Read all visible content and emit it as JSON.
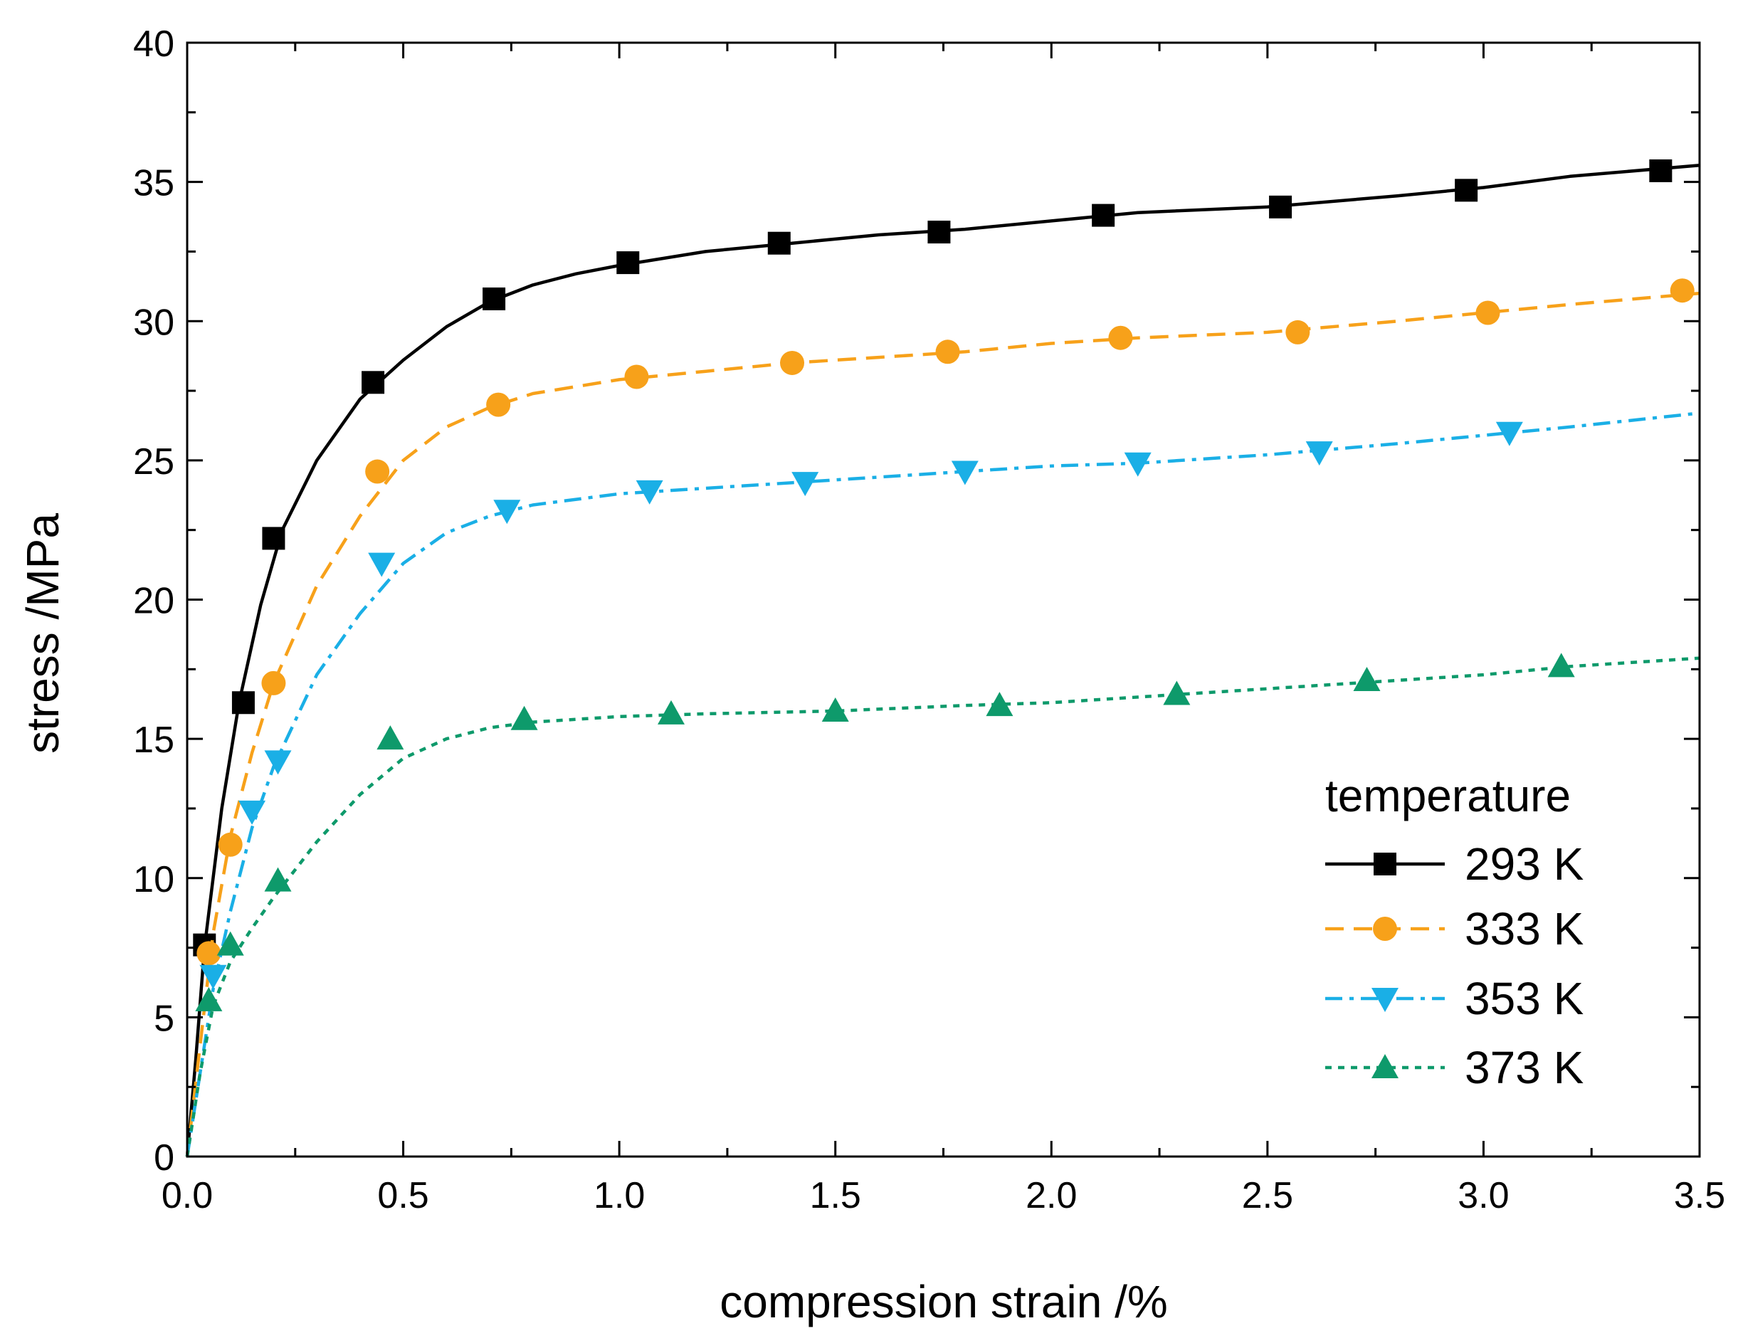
{
  "chart_data": {
    "type": "line",
    "title": "",
    "xlabel": "compression strain /%",
    "ylabel": "stress /MPa",
    "xlim": [
      0,
      3.5
    ],
    "ylim": [
      0,
      40
    ],
    "x_ticks": [
      0.0,
      0.5,
      1.0,
      1.5,
      2.0,
      2.5,
      3.0,
      3.5
    ],
    "x_tick_labels": [
      "0.0",
      "0.5",
      "1.0",
      "1.5",
      "2.0",
      "2.5",
      "3.0",
      "3.5"
    ],
    "y_ticks": [
      0,
      5,
      10,
      15,
      20,
      25,
      30,
      35,
      40
    ],
    "y_tick_labels": [
      "0",
      "5",
      "10",
      "15",
      "20",
      "25",
      "30",
      "35",
      "40"
    ],
    "grid": false,
    "legend": {
      "title": "temperature",
      "position": "bottom-right"
    },
    "series": [
      {
        "name": "293 K",
        "color": "#000000",
        "marker": "square",
        "line_style": "solid",
        "markers_x": [
          0.04,
          0.13,
          0.2,
          0.43,
          0.71,
          1.02,
          1.37,
          1.74,
          2.12,
          2.53,
          2.96,
          3.41
        ],
        "markers_y": [
          7.6,
          16.3,
          22.2,
          27.8,
          30.8,
          32.1,
          32.8,
          33.2,
          33.8,
          34.1,
          34.7,
          35.4
        ],
        "curve": [
          [
            0,
            0
          ],
          [
            0.02,
            3.5
          ],
          [
            0.04,
            7.5
          ],
          [
            0.08,
            12.5
          ],
          [
            0.12,
            16.3
          ],
          [
            0.17,
            19.8
          ],
          [
            0.22,
            22.5
          ],
          [
            0.3,
            25.0
          ],
          [
            0.4,
            27.2
          ],
          [
            0.5,
            28.6
          ],
          [
            0.6,
            29.8
          ],
          [
            0.7,
            30.7
          ],
          [
            0.8,
            31.3
          ],
          [
            0.9,
            31.7
          ],
          [
            1.0,
            32.0
          ],
          [
            1.2,
            32.5
          ],
          [
            1.4,
            32.8
          ],
          [
            1.6,
            33.1
          ],
          [
            1.8,
            33.3
          ],
          [
            2.0,
            33.6
          ],
          [
            2.2,
            33.9
          ],
          [
            2.5,
            34.1
          ],
          [
            2.8,
            34.5
          ],
          [
            3.0,
            34.8
          ],
          [
            3.2,
            35.2
          ],
          [
            3.5,
            35.6
          ]
        ]
      },
      {
        "name": "333 K",
        "color": "#F7A11A",
        "marker": "circle",
        "line_style": "dashed",
        "markers_x": [
          0.05,
          0.1,
          0.2,
          0.44,
          0.72,
          1.04,
          1.4,
          1.76,
          2.16,
          2.57,
          3.01,
          3.46
        ],
        "markers_y": [
          7.3,
          11.2,
          17.0,
          24.6,
          27.0,
          28.0,
          28.5,
          28.9,
          29.4,
          29.6,
          30.3,
          31.1
        ],
        "curve": [
          [
            0,
            0
          ],
          [
            0.03,
            4.0
          ],
          [
            0.06,
            8.0
          ],
          [
            0.1,
            11.5
          ],
          [
            0.15,
            14.5
          ],
          [
            0.2,
            17.0
          ],
          [
            0.3,
            20.5
          ],
          [
            0.4,
            23.0
          ],
          [
            0.5,
            25.0
          ],
          [
            0.6,
            26.2
          ],
          [
            0.7,
            26.9
          ],
          [
            0.8,
            27.4
          ],
          [
            1.0,
            27.9
          ],
          [
            1.2,
            28.2
          ],
          [
            1.4,
            28.5
          ],
          [
            1.6,
            28.7
          ],
          [
            1.8,
            28.9
          ],
          [
            2.0,
            29.2
          ],
          [
            2.2,
            29.4
          ],
          [
            2.5,
            29.6
          ],
          [
            2.8,
            30.0
          ],
          [
            3.0,
            30.3
          ],
          [
            3.2,
            30.6
          ],
          [
            3.5,
            31.0
          ]
        ]
      },
      {
        "name": "353 K",
        "color": "#1AAFE6",
        "marker": "triangle-down",
        "line_style": "dash-dot",
        "markers_x": [
          0.06,
          0.15,
          0.21,
          0.45,
          0.74,
          1.07,
          1.43,
          1.8,
          2.2,
          2.62,
          3.06
        ],
        "markers_y": [
          6.5,
          12.4,
          14.2,
          21.3,
          23.2,
          23.9,
          24.2,
          24.6,
          24.9,
          25.3,
          26.0
        ],
        "curve": [
          [
            0,
            0
          ],
          [
            0.03,
            3.0
          ],
          [
            0.06,
            6.0
          ],
          [
            0.1,
            8.8
          ],
          [
            0.15,
            11.8
          ],
          [
            0.2,
            14.0
          ],
          [
            0.3,
            17.3
          ],
          [
            0.4,
            19.5
          ],
          [
            0.5,
            21.3
          ],
          [
            0.6,
            22.4
          ],
          [
            0.7,
            23.0
          ],
          [
            0.8,
            23.4
          ],
          [
            1.0,
            23.8
          ],
          [
            1.2,
            24.0
          ],
          [
            1.4,
            24.2
          ],
          [
            1.6,
            24.4
          ],
          [
            1.8,
            24.6
          ],
          [
            2.0,
            24.8
          ],
          [
            2.2,
            24.9
          ],
          [
            2.5,
            25.2
          ],
          [
            2.8,
            25.6
          ],
          [
            3.0,
            25.9
          ],
          [
            3.2,
            26.2
          ],
          [
            3.5,
            26.7
          ]
        ]
      },
      {
        "name": "373 K",
        "color": "#0E9A6B",
        "marker": "triangle-up",
        "line_style": "dotted",
        "markers_x": [
          0.05,
          0.1,
          0.21,
          0.47,
          0.78,
          1.12,
          1.5,
          1.88,
          2.29,
          2.73,
          3.18
        ],
        "markers_y": [
          5.6,
          7.6,
          9.9,
          15.0,
          15.7,
          15.9,
          16.0,
          16.2,
          16.6,
          17.1,
          17.6
        ],
        "curve": [
          [
            0,
            0
          ],
          [
            0.03,
            3.0
          ],
          [
            0.06,
            5.4
          ],
          [
            0.1,
            7.0
          ],
          [
            0.15,
            8.2
          ],
          [
            0.2,
            9.3
          ],
          [
            0.3,
            11.3
          ],
          [
            0.4,
            13.0
          ],
          [
            0.5,
            14.3
          ],
          [
            0.6,
            15.0
          ],
          [
            0.7,
            15.4
          ],
          [
            0.8,
            15.6
          ],
          [
            1.0,
            15.8
          ],
          [
            1.2,
            15.9
          ],
          [
            1.5,
            16.0
          ],
          [
            1.8,
            16.2
          ],
          [
            2.0,
            16.3
          ],
          [
            2.3,
            16.6
          ],
          [
            2.6,
            16.9
          ],
          [
            2.8,
            17.1
          ],
          [
            3.0,
            17.3
          ],
          [
            3.2,
            17.6
          ],
          [
            3.5,
            17.9
          ]
        ]
      }
    ]
  }
}
